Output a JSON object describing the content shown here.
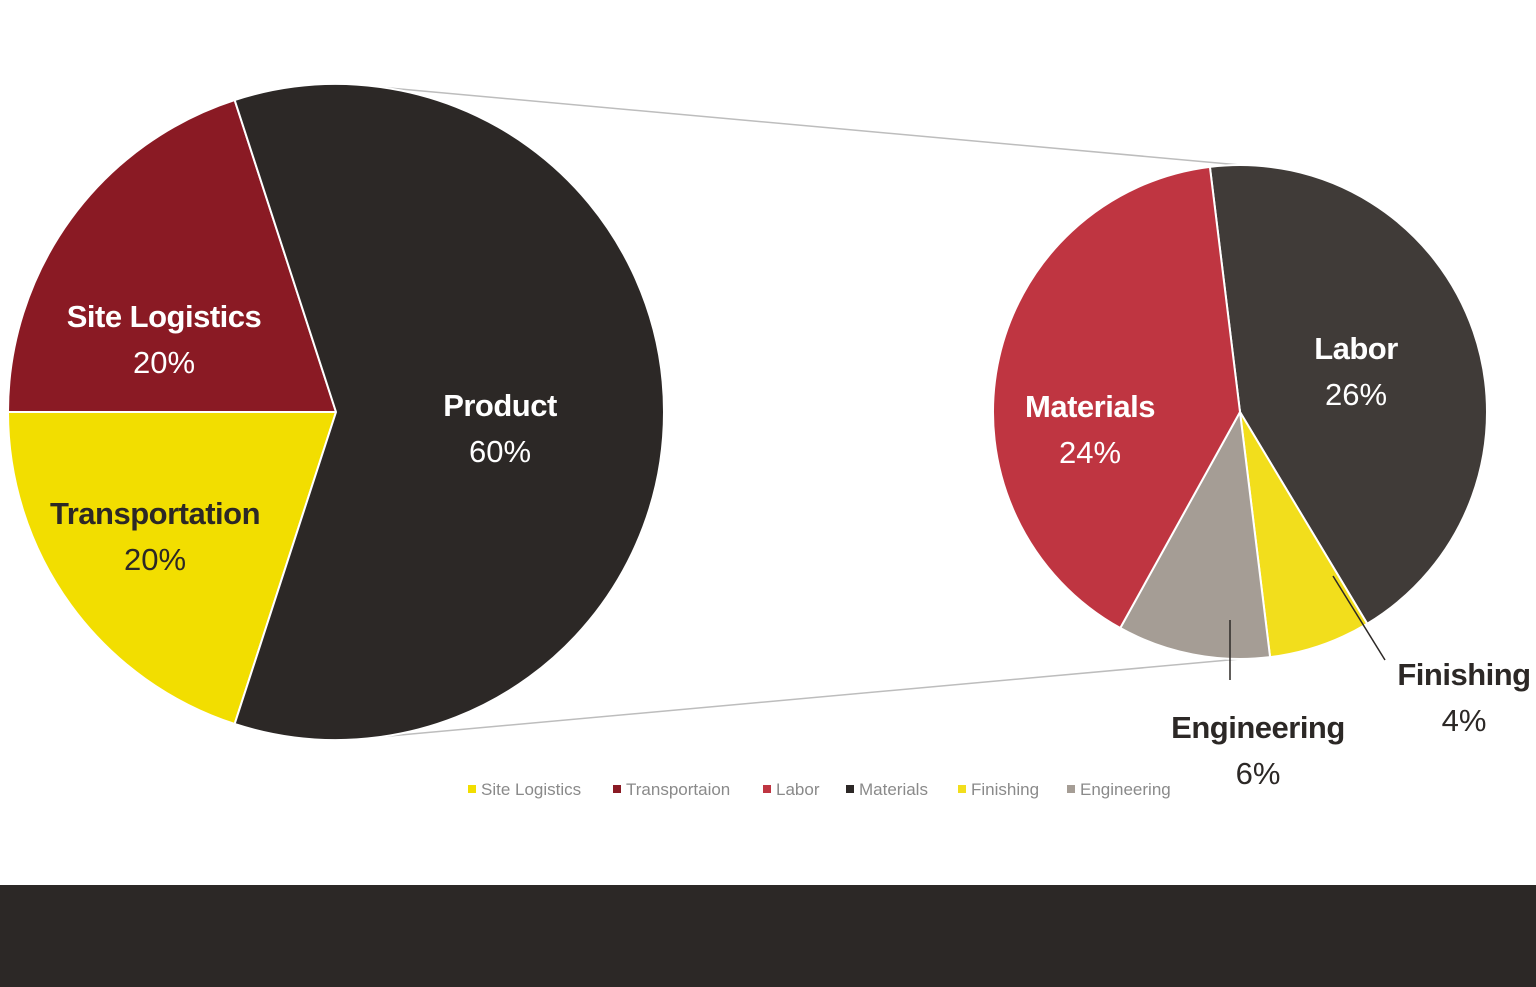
{
  "chart_data": [
    {
      "type": "pie",
      "title": "",
      "categories": [
        "Site Logistics",
        "Transportation",
        "Product"
      ],
      "values": [
        20,
        20,
        60
      ],
      "value_labels": [
        "20%",
        "20%",
        "60%"
      ],
      "colors": [
        "#8a1a24",
        "#f2de00",
        "#2c2826"
      ],
      "label_colors": [
        "#ffffff",
        "#2c2826",
        "#ffffff"
      ],
      "exploded_to": "Product"
    },
    {
      "type": "pie",
      "title": "",
      "categories": [
        "Labor",
        "Finishing",
        "Engineering",
        "Materials"
      ],
      "values": [
        26,
        4,
        6,
        24
      ],
      "value_labels": [
        "26%",
        "4%",
        "6%",
        "24%"
      ],
      "colors": [
        "#403b38",
        "#f2de1c",
        "#a59d95",
        "#bf3541"
      ],
      "label_colors": [
        "#ffffff",
        "#2c2826",
        "#2c2826",
        "#ffffff"
      ]
    }
  ],
  "legend": {
    "placement": "bottom",
    "items": [
      {
        "label": "Site Logistics",
        "color": "#f2de00"
      },
      {
        "label": "Transportaion",
        "color": "#8a1a24"
      },
      {
        "label": "Labor",
        "color": "#bf3541"
      },
      {
        "label": "Materials",
        "color": "#2c2826"
      },
      {
        "label": "Finishing",
        "color": "#f2de1c"
      },
      {
        "label": "Engineering",
        "color": "#a59d95"
      }
    ]
  }
}
